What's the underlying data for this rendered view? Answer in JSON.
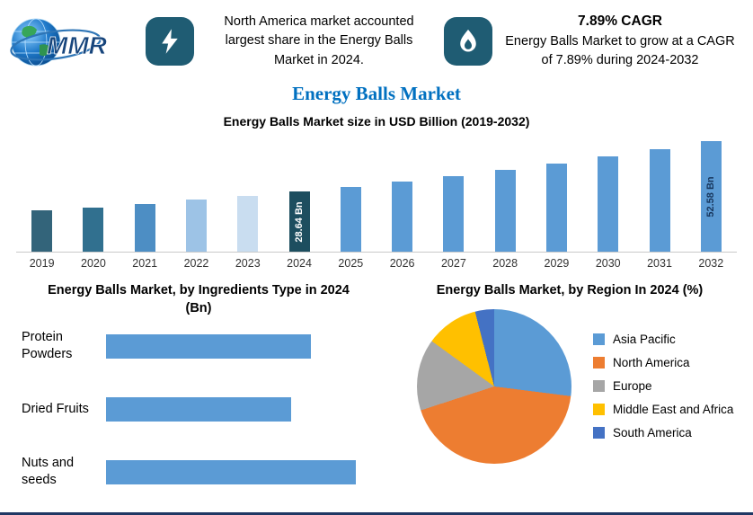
{
  "colors": {
    "badge_teal": "#1f5c73",
    "title_blue": "#0070c0",
    "bottom_border_navy": "#203864",
    "primary_bar_blue": "#5b9bd5"
  },
  "header": {
    "logo_text": "MMR",
    "callout1": "North America market accounted largest share in the Energy Balls Market in 2024.",
    "cagr_title": "7.89% CAGR",
    "callout2": "Energy Balls Market to grow at a CAGR of 7.89% during 2024-2032"
  },
  "page_title": "Energy Balls Market",
  "chart_data": [
    {
      "type": "bar",
      "title": "Energy Balls Market size in USD Billion (2019-2032)",
      "categories": [
        "2019",
        "2020",
        "2021",
        "2022",
        "2023",
        "2024",
        "2025",
        "2026",
        "2027",
        "2028",
        "2029",
        "2030",
        "2031",
        "2032"
      ],
      "values": [
        19.6,
        21.1,
        22.8,
        24.6,
        26.5,
        28.64,
        30.9,
        33.3,
        36.0,
        38.8,
        41.9,
        45.2,
        48.7,
        52.58
      ],
      "ylabel": "USD Billion",
      "ylim": [
        0,
        55
      ],
      "grid": false,
      "bar_colors": [
        "#33647a",
        "#31708f",
        "#4d8ec4",
        "#9dc3e6",
        "#c9ddf0",
        "#1d4e5f",
        "#5b9bd5",
        "#5b9bd5",
        "#5b9bd5",
        "#5b9bd5",
        "#5b9bd5",
        "#5b9bd5",
        "#5b9bd5",
        "#5b9bd5"
      ],
      "bar_labels": {
        "2024": {
          "text": "28.64 Bn",
          "color": "#ffffff"
        },
        "2032": {
          "text": "52.58 Bn",
          "color": "#17365d"
        }
      }
    },
    {
      "type": "bar",
      "orientation": "horizontal",
      "title": "Energy Balls Market, by Ingredients Type in 2024 (Bn)",
      "categories": [
        "Protein Powders",
        "Dried Fruits",
        "Nuts and seeds"
      ],
      "values": [
        0.82,
        0.74,
        1.0
      ],
      "value_scale": "relative bar length (value axis unlabeled)",
      "bar_color": "#5b9bd5",
      "grid": false
    },
    {
      "type": "pie",
      "title": "Energy Balls Market, by Region In 2024 (%)",
      "start_angle_deg": 0,
      "direction": "clockwise",
      "legend_position": "right",
      "slices": [
        {
          "label": "Asia Pacific",
          "value": 27,
          "color": "#5b9bd5"
        },
        {
          "label": "North America",
          "value": 43,
          "color": "#ed7d31"
        },
        {
          "label": "Europe",
          "value": 15,
          "color": "#a6a6a6"
        },
        {
          "label": "Middle East and Africa",
          "value": 11,
          "color": "#ffc000"
        },
        {
          "label": "South America",
          "value": 4,
          "color": "#4472c4"
        }
      ]
    }
  ]
}
